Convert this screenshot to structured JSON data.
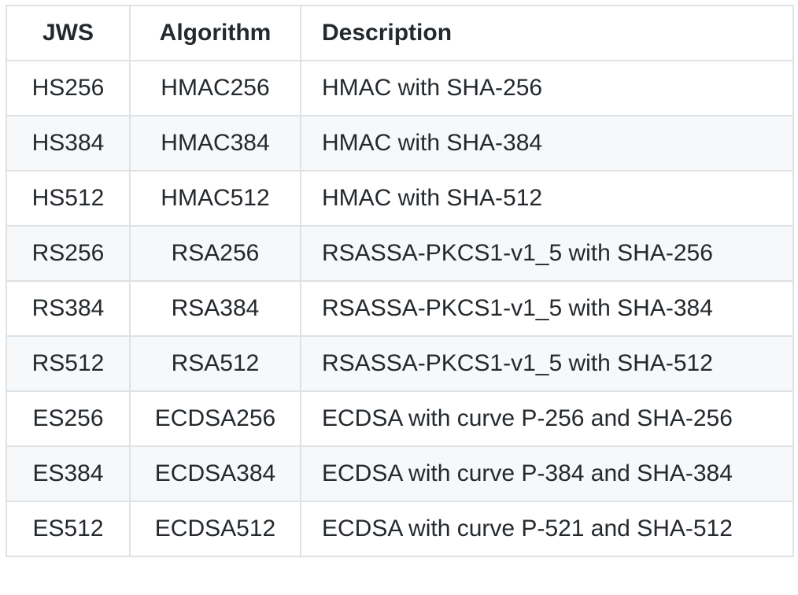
{
  "table": {
    "headers": {
      "jws": "JWS",
      "algorithm": "Algorithm",
      "description": "Description"
    },
    "rows": [
      {
        "jws": "HS256",
        "algorithm": "HMAC256",
        "description": "HMAC with SHA-256"
      },
      {
        "jws": "HS384",
        "algorithm": "HMAC384",
        "description": "HMAC with SHA-384"
      },
      {
        "jws": "HS512",
        "algorithm": "HMAC512",
        "description": "HMAC with SHA-512"
      },
      {
        "jws": "RS256",
        "algorithm": "RSA256",
        "description": "RSASSA-PKCS1-v1_5 with SHA-256"
      },
      {
        "jws": "RS384",
        "algorithm": "RSA384",
        "description": "RSASSA-PKCS1-v1_5 with SHA-384"
      },
      {
        "jws": "RS512",
        "algorithm": "RSA512",
        "description": "RSASSA-PKCS1-v1_5 with SHA-512"
      },
      {
        "jws": "ES256",
        "algorithm": "ECDSA256",
        "description": "ECDSA with curve P-256 and SHA-256"
      },
      {
        "jws": "ES384",
        "algorithm": "ECDSA384",
        "description": "ECDSA with curve P-384 and SHA-384"
      },
      {
        "jws": "ES512",
        "algorithm": "ECDSA512",
        "description": "ECDSA with curve P-521 and SHA-512"
      }
    ]
  },
  "colors": {
    "text": "#24292e",
    "border": "#dfe2e5",
    "stripe": "#f6f8fa",
    "background": "#ffffff"
  }
}
